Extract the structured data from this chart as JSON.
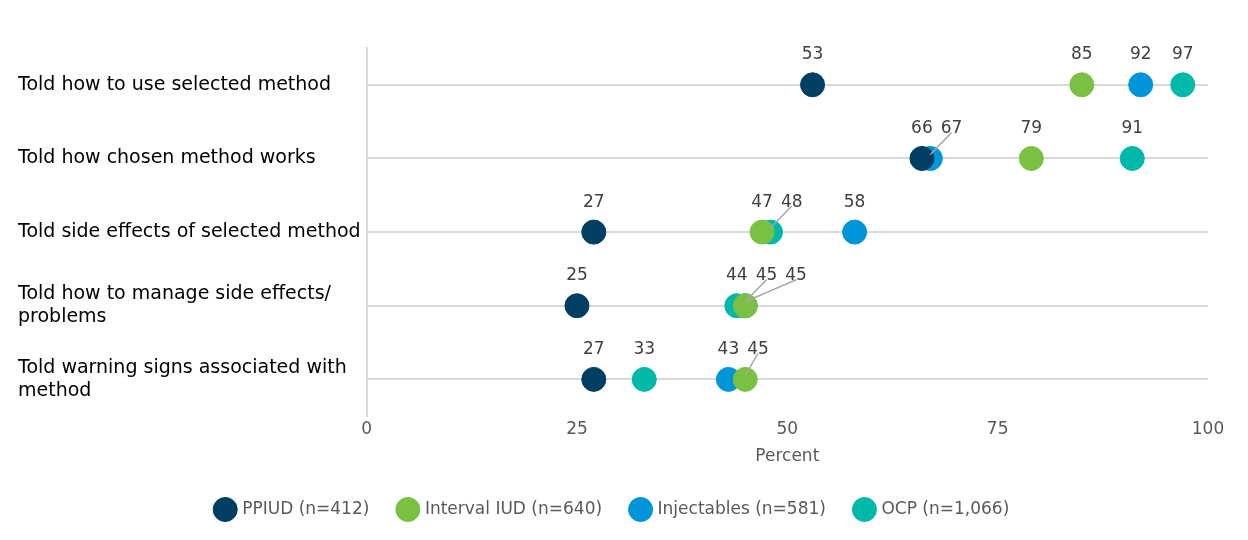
{
  "chart_data": {
    "type": "scatter",
    "orientation": "horizontal",
    "xlabel": "Percent",
    "categories": [
      "Told how to use selected method",
      "Told how chosen method works",
      "Told side effects of selected method",
      "Told how to manage side effects/ problems",
      "Told warning signs associated with method"
    ],
    "series": [
      {
        "name": "PPIUD (n=412)",
        "color": "#003f63",
        "values": [
          53,
          66,
          27,
          25,
          27
        ]
      },
      {
        "name": "Interval IUD (n=640)",
        "color": "#7ac143",
        "values": [
          85,
          79,
          47,
          45,
          45
        ]
      },
      {
        "name": "Injectables (n=581)",
        "color": "#0095d9",
        "values": [
          92,
          67,
          58,
          45,
          43
        ]
      },
      {
        "name": "OCP (n=1,066)",
        "color": "#00b9a8",
        "values": [
          97,
          91,
          48,
          44,
          33
        ]
      }
    ],
    "xlim": [
      0,
      100
    ],
    "xticks": [
      0,
      25,
      50,
      75,
      100
    ],
    "grid": "y",
    "legend": "bottom",
    "marker": "circle",
    "data_labels": true
  }
}
